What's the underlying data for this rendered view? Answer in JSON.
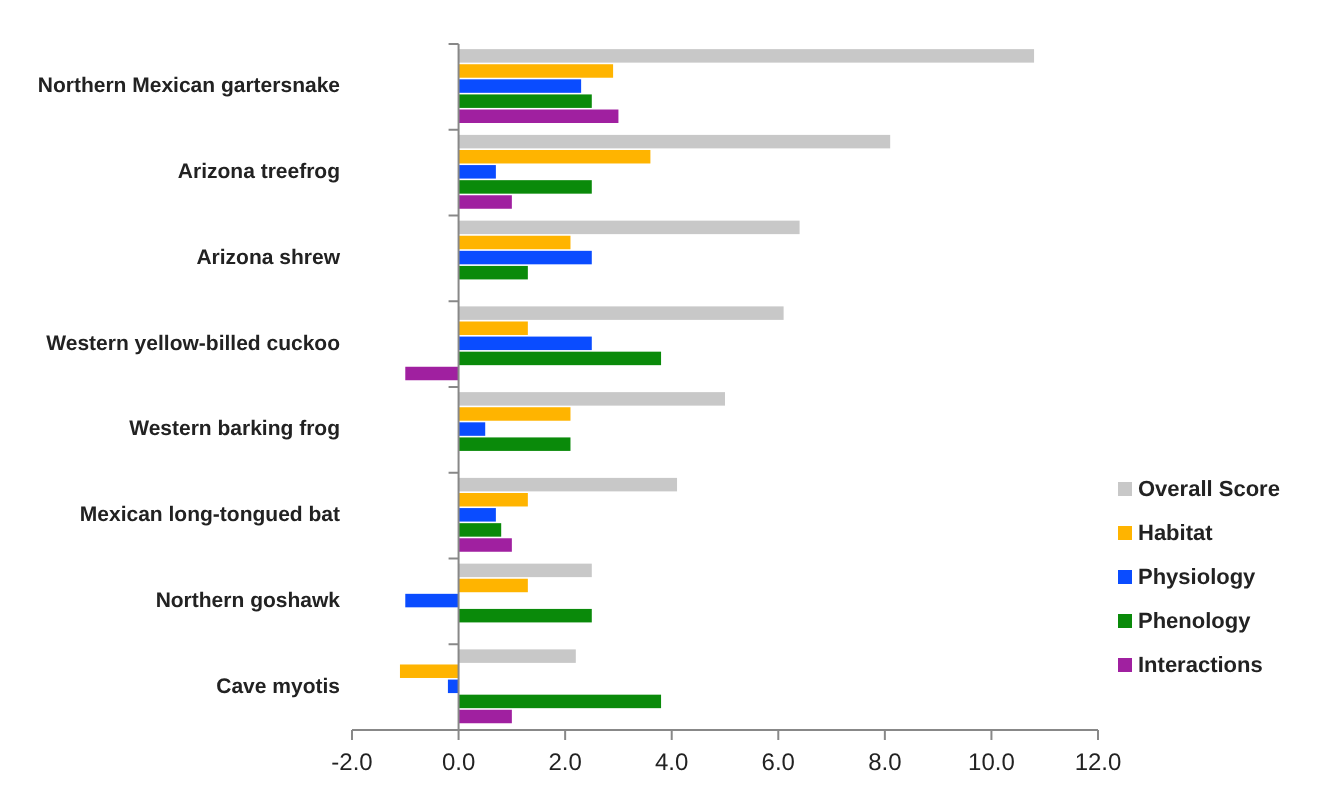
{
  "chart_data": {
    "type": "bar",
    "orientation": "horizontal",
    "categories": [
      "Northern Mexican gartersnake",
      "Arizona treefrog",
      "Arizona shrew",
      "Western yellow-billed cuckoo",
      "Western barking frog",
      "Mexican long-tongued bat",
      "Northern goshawk",
      "Cave myotis"
    ],
    "series": [
      {
        "name": "Overall Score",
        "color": "#c8c8c8",
        "values": [
          10.8,
          8.1,
          6.4,
          6.1,
          5.0,
          4.1,
          2.5,
          2.2
        ]
      },
      {
        "name": "Habitat",
        "color": "#ffb400",
        "values": [
          2.9,
          3.6,
          2.1,
          1.3,
          2.1,
          1.3,
          1.3,
          -1.1
        ]
      },
      {
        "name": "Physiology",
        "color": "#0a4cff",
        "values": [
          2.3,
          0.7,
          2.5,
          2.5,
          0.5,
          0.7,
          -1.0,
          -0.2
        ]
      },
      {
        "name": "Phenology",
        "color": "#0a8a0a",
        "values": [
          2.5,
          2.5,
          1.3,
          3.8,
          2.1,
          0.8,
          2.5,
          3.8
        ]
      },
      {
        "name": "Interactions",
        "color": "#a020a0",
        "values": [
          3.0,
          1.0,
          null,
          -1.0,
          null,
          1.0,
          null,
          1.0
        ]
      }
    ],
    "xlim": [
      -2,
      12
    ],
    "xticks": [
      {
        "value": -2,
        "label": "-2.0"
      },
      {
        "value": 0,
        "label": "0.0"
      },
      {
        "value": 2,
        "label": "2.0"
      },
      {
        "value": 4,
        "label": "4.0"
      },
      {
        "value": 6,
        "label": "6.0"
      },
      {
        "value": 8,
        "label": "8.0"
      },
      {
        "value": 10,
        "label": "10.0"
      },
      {
        "value": 12,
        "label": "12.0"
      }
    ],
    "legend": "right"
  }
}
